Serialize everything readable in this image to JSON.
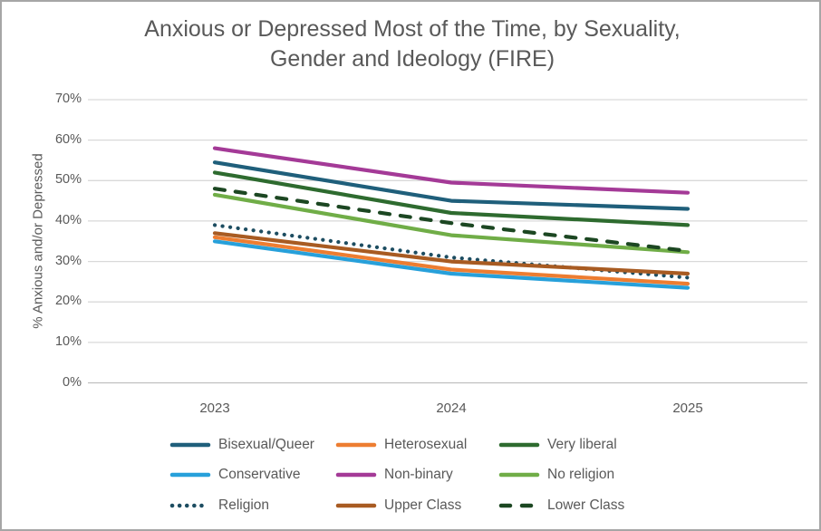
{
  "chart": {
    "title": "Anxious or Depressed Most of the Time, by Sexuality, Gender and Ideology (FIRE)",
    "y_axis_title": "% Anxious and/or Depressed"
  },
  "chart_data": {
    "type": "line",
    "title": "Anxious or Depressed Most of the Time, by Sexuality, Gender and Ideology (FIRE)",
    "xlabel": "",
    "ylabel": "% Anxious and/or Depressed",
    "categories": [
      "2023",
      "2024",
      "2025"
    ],
    "ylim": [
      0,
      70
    ],
    "y_tick_step": 10,
    "y_tick_labels": [
      "0%",
      "10%",
      "20%",
      "30%",
      "40%",
      "50%",
      "60%",
      "70%"
    ],
    "grid": true,
    "legend_position": "bottom",
    "colors": {
      "gridline": "#d9d9d9",
      "axis_line": "#bfbfbf",
      "text": "#595959"
    },
    "series": [
      {
        "name": "Bisexual/Queer",
        "color": "#1F5F7B",
        "style": "solid",
        "values": [
          54.5,
          45.0,
          43.0
        ]
      },
      {
        "name": "Heterosexual",
        "color": "#ED7D31",
        "style": "solid",
        "values": [
          36.0,
          28.0,
          24.5
        ]
      },
      {
        "name": "Very liberal",
        "color": "#2E6B2F",
        "style": "solid",
        "values": [
          52.0,
          42.0,
          39.0
        ]
      },
      {
        "name": "Conservative",
        "color": "#27A0DA",
        "style": "solid",
        "values": [
          35.0,
          27.0,
          23.5
        ]
      },
      {
        "name": "Non-binary",
        "color": "#A43A97",
        "style": "solid",
        "values": [
          58.0,
          49.5,
          47.0
        ]
      },
      {
        "name": "No religion",
        "color": "#70AD47",
        "style": "solid",
        "values": [
          46.5,
          36.5,
          32.3
        ]
      },
      {
        "name": "Religion",
        "color": "#1D4D61",
        "style": "dotted",
        "values": [
          39.0,
          31.0,
          26.0
        ]
      },
      {
        "name": "Upper Class",
        "color": "#A85B22",
        "style": "solid",
        "values": [
          37.0,
          30.0,
          27.0
        ]
      },
      {
        "name": "Lower Class",
        "color": "#1C4722",
        "style": "dashed",
        "values": [
          48.0,
          39.5,
          32.6
        ]
      }
    ]
  }
}
